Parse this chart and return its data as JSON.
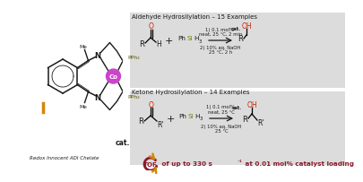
{
  "bg_color": "#ffffff",
  "reaction_box_bg": "#dcdcdc",
  "title1": "Aldehyde Hydrosilylation – 15 Examples",
  "title2": "Ketone Hydrosilylation – 14 Examples",
  "bottom_text": " of up to 330 s",
  "bottom_text2": "-1",
  "bottom_text3": " at 0.01 mol% catalyst loading",
  "tof_text": "TOF",
  "cat_label": "cat.",
  "redox_label": "Redox Innocent ADI Chelate",
  "silane_text": "PhSiH",
  "silane_sub": "3",
  "co_label": "Co",
  "crimson": "#8b1a2a",
  "orange": "#d4860a",
  "red_o": "#cc2200",
  "magenta": "#cc44cc",
  "olive": "#7a7a00",
  "black": "#1a1a1a",
  "dark_gray": "#333333",
  "pph2_color": "#5a5a00"
}
